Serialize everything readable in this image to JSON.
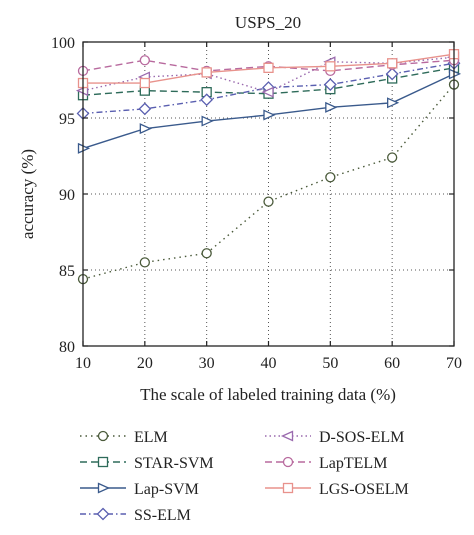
{
  "chart_data": {
    "type": "line",
    "title": "USPS_20",
    "xlabel": "The scale of labeled training data (%)",
    "ylabel": "accuracy (%)",
    "x": [
      10,
      20,
      30,
      40,
      50,
      60,
      70
    ],
    "xticks": [
      "10",
      "20",
      "30",
      "40",
      "50",
      "60",
      "70"
    ],
    "yticks": [
      "80",
      "85",
      "90",
      "95",
      "100"
    ],
    "xlim": [
      10,
      70
    ],
    "ylim": [
      80,
      100
    ],
    "grid": true,
    "legend_position": "bottom",
    "series": [
      {
        "name": "ELM",
        "color": "#4a5a3a",
        "dash": "1.5,4",
        "marker": "circle",
        "values": [
          84.4,
          85.5,
          86.1,
          89.5,
          91.1,
          92.4,
          97.2
        ]
      },
      {
        "name": "STAR-SVM",
        "color": "#2e6b5a",
        "dash": "7,4",
        "marker": "square",
        "values": [
          96.5,
          96.8,
          96.7,
          96.6,
          96.9,
          97.6,
          98.3
        ]
      },
      {
        "name": "Lap-SVM",
        "color": "#3a5a8c",
        "dash": "",
        "marker": "triangle-right",
        "values": [
          93.0,
          94.3,
          94.8,
          95.2,
          95.7,
          96.0,
          97.9
        ]
      },
      {
        "name": "SS-ELM",
        "color": "#5a5fb0",
        "dash": "6,3,1.5,3",
        "marker": "diamond",
        "values": [
          95.3,
          95.6,
          96.2,
          97.0,
          97.2,
          97.9,
          98.6
        ]
      },
      {
        "name": "D-SOS-ELM",
        "color": "#9a6aae",
        "dash": "1.5,3",
        "marker": "triangle-left",
        "values": [
          96.8,
          97.7,
          97.9,
          96.7,
          98.7,
          98.6,
          99.0
        ]
      },
      {
        "name": "LapTELM",
        "color": "#b86a9e",
        "dash": "7,4",
        "marker": "circle",
        "values": [
          98.1,
          98.8,
          98.1,
          98.4,
          98.1,
          98.5,
          98.8
        ]
      },
      {
        "name": "LGS-OSELM",
        "color": "#e8928c",
        "dash": "",
        "marker": "square",
        "values": [
          97.3,
          97.3,
          98.0,
          98.3,
          98.4,
          98.6,
          99.2
        ]
      }
    ]
  }
}
